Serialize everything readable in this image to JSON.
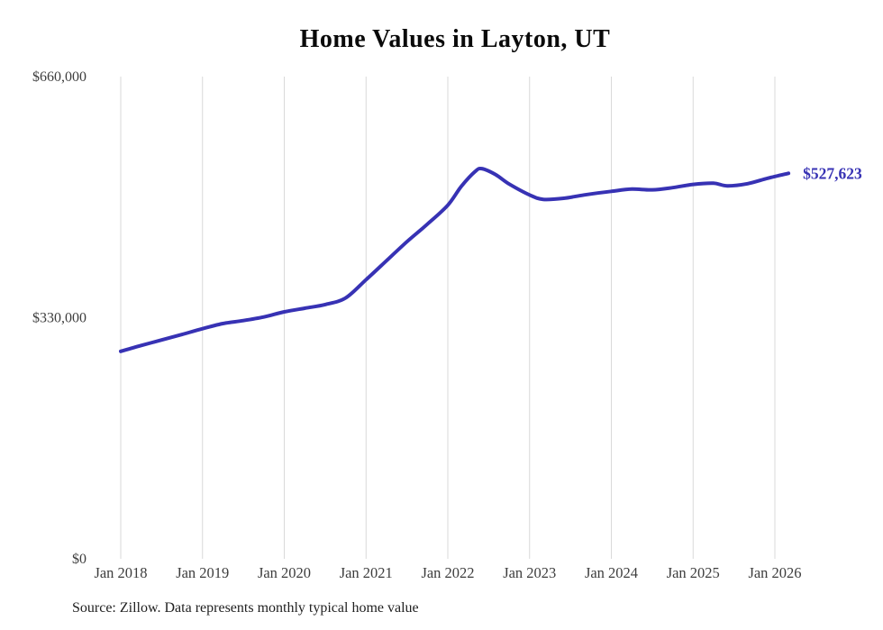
{
  "chart_data": {
    "type": "line",
    "title": "Home Values in Layton, UT",
    "source": "Source: Zillow. Data represents monthly typical home value",
    "current_value_label": "$527,623",
    "x": [
      "2018-01",
      "2018-04",
      "2018-07",
      "2018-10",
      "2019-01",
      "2019-04",
      "2019-07",
      "2019-10",
      "2020-01",
      "2020-04",
      "2020-07",
      "2020-10",
      "2021-01",
      "2021-04",
      "2021-07",
      "2021-10",
      "2022-01",
      "2022-03",
      "2022-05",
      "2022-06",
      "2022-08",
      "2022-10",
      "2023-01",
      "2023-03",
      "2023-06",
      "2023-09",
      "2024-01",
      "2024-04",
      "2024-07",
      "2024-10",
      "2025-01",
      "2025-04",
      "2025-06",
      "2025-09",
      "2025-12",
      "2026-03"
    ],
    "series": [
      {
        "name": "Typical home value",
        "values": [
          284000,
          292000,
          299500,
          307000,
          315000,
          322000,
          326000,
          331000,
          338000,
          343000,
          348000,
          357000,
          382000,
          408000,
          434000,
          458000,
          484000,
          510000,
          530000,
          534000,
          526000,
          513000,
          498000,
          492000,
          493500,
          498000,
          503000,
          506000,
          505000,
          508000,
          512500,
          514000,
          510500,
          513500,
          521000,
          527623
        ]
      }
    ],
    "ylim": [
      0,
      660000
    ],
    "yticks": [
      {
        "value": 0,
        "label": "$0"
      },
      {
        "value": 330000,
        "label": "$330,000"
      },
      {
        "value": 660000,
        "label": "$660,000"
      }
    ],
    "xticks": [
      "Jan 2018",
      "Jan 2019",
      "Jan 2020",
      "Jan 2021",
      "Jan 2022",
      "Jan 2023",
      "Jan 2024",
      "Jan 2025",
      "Jan 2026"
    ],
    "grid": "vertical",
    "legend": "none",
    "colors": {
      "line": "#3732b4",
      "grid": "#d9d9d9",
      "tick": "#3d3d3d",
      "title": "#0a0a0a"
    }
  }
}
